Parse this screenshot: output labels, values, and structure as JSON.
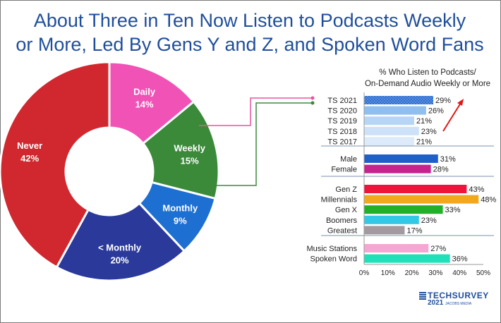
{
  "title": {
    "line1": "About Three in Ten Now Listen to Podcasts Weekly",
    "line2": "or More, Led By Gens Y and Z, and Spoken Word Fans"
  },
  "chart_data": [
    {
      "type": "pie",
      "variant": "donut",
      "slices": [
        {
          "label": "Daily",
          "value": 14,
          "display": "14%",
          "color": "#f052b6"
        },
        {
          "label": "Weekly",
          "value": 15,
          "display": "15%",
          "color": "#3b8a3a"
        },
        {
          "label": "Monthly",
          "value": 9,
          "display": "9%",
          "color": "#1d6fd1"
        },
        {
          "label": "< Monthly",
          "value": 20,
          "display": "20%",
          "color": "#2b3a9a"
        },
        {
          "label": "Never",
          "value": 42,
          "display": "42%",
          "color": "#d0282e"
        }
      ]
    },
    {
      "type": "bar",
      "orientation": "horizontal",
      "title_line1": "% Who Listen to Podcasts/",
      "title_line2": "On-Demand Audio Weekly or More",
      "xlim": [
        0,
        50
      ],
      "xticks": [
        "0%",
        "10%",
        "20%",
        "30%",
        "40%",
        "50%"
      ],
      "groups": [
        {
          "bars": [
            {
              "label": "TS 2021",
              "value": 29,
              "display": "29%",
              "color": "#2f6fd0",
              "pattern": true
            },
            {
              "label": "TS 2020",
              "value": 26,
              "display": "26%",
              "color": "#8fbfef"
            },
            {
              "label": "TS 2019",
              "value": 21,
              "display": "21%",
              "color": "#b7d6f5"
            },
            {
              "label": "TS 2018",
              "value": 23,
              "display": "23%",
              "color": "#cde2f8"
            },
            {
              "label": "TS 2017",
              "value": 21,
              "display": "21%",
              "color": "#dceaf9"
            }
          ]
        },
        {
          "bars": [
            {
              "label": "Male",
              "value": 31,
              "display": "31%",
              "color": "#1f5fc8"
            },
            {
              "label": "Female",
              "value": 28,
              "display": "28%",
              "color": "#c7238f"
            }
          ]
        },
        {
          "bars": [
            {
              "label": "Gen Z",
              "value": 43,
              "display": "43%",
              "color": "#f0143c"
            },
            {
              "label": "Millennials",
              "value": 48,
              "display": "48%",
              "color": "#f3a81c"
            },
            {
              "label": "Gen X",
              "value": 33,
              "display": "33%",
              "color": "#22b02a"
            },
            {
              "label": "Boomers",
              "value": 23,
              "display": "23%",
              "color": "#33c9e6"
            },
            {
              "label": "Greatest",
              "value": 17,
              "display": "17%",
              "color": "#a39aa0"
            }
          ]
        },
        {
          "bars": [
            {
              "label": "Music Stations",
              "value": 27,
              "display": "27%",
              "color": "#f5a6d2"
            },
            {
              "label": "Spoken Word",
              "value": 36,
              "display": "36%",
              "color": "#1fe0b8"
            }
          ]
        }
      ]
    }
  ],
  "connector_colors": {
    "daily": "#e8559e",
    "weekly": "#3b8a3a"
  },
  "trend_arrow_color": "#e01818",
  "logo": {
    "line1": "TECHSURVEY",
    "line2": "2021",
    "line2_small": "JACOBS MEDIA"
  }
}
